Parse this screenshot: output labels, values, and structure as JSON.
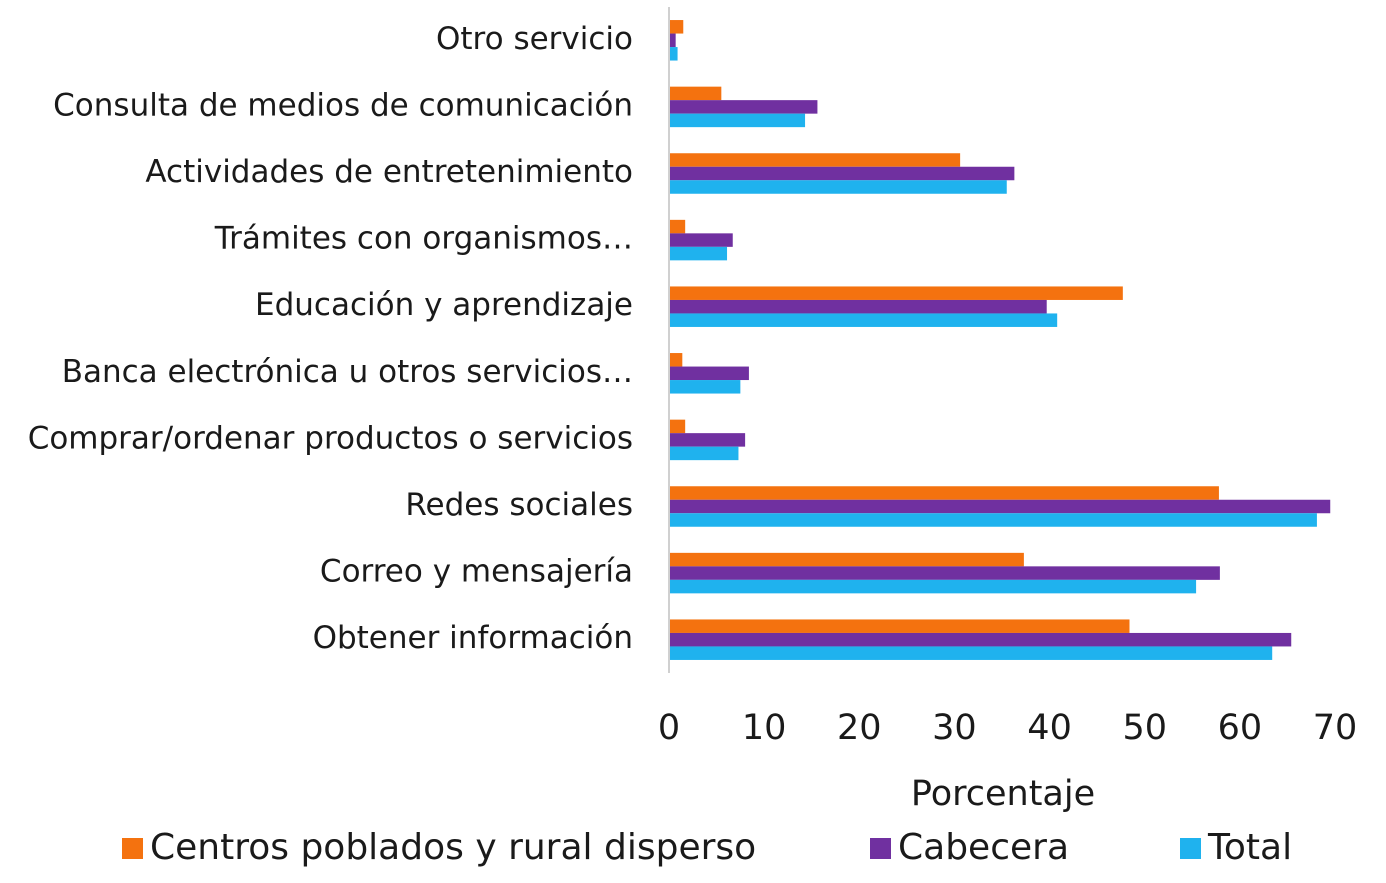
{
  "chart_data": {
    "type": "bar",
    "orientation": "horizontal",
    "categories": [
      "Otro servicio",
      "Consulta de medios de comunicación",
      "Actividades de entretenimiento",
      "Trámites con organismos…",
      "Educación y aprendizaje",
      "Banca electrónica u otros servicios…",
      "Comprar/ordenar productos o servicios",
      "Redes sociales",
      "Correo y mensajería",
      "Obtener información"
    ],
    "series": [
      {
        "name": "Centros poblados y rural disperso",
        "color": "#f4720f",
        "values": [
          1.5,
          5.5,
          30.6,
          1.7,
          47.7,
          1.4,
          1.7,
          57.8,
          37.3,
          48.4
        ]
      },
      {
        "name": "Cabecera",
        "color": "#7030a0",
        "values": [
          0.7,
          15.6,
          36.3,
          6.7,
          39.7,
          8.4,
          8.0,
          69.5,
          57.9,
          65.4
        ]
      },
      {
        "name": "Total",
        "color": "#1fb2ee",
        "values": [
          0.9,
          14.3,
          35.5,
          6.1,
          40.8,
          7.5,
          7.3,
          68.1,
          55.4,
          63.4
        ]
      }
    ],
    "xlabel": "Porcentaje",
    "xlim": [
      0,
      70
    ],
    "xticks": [
      0,
      10,
      20,
      30,
      40,
      50,
      60,
      70
    ],
    "grid": false,
    "legend": "bottom"
  }
}
